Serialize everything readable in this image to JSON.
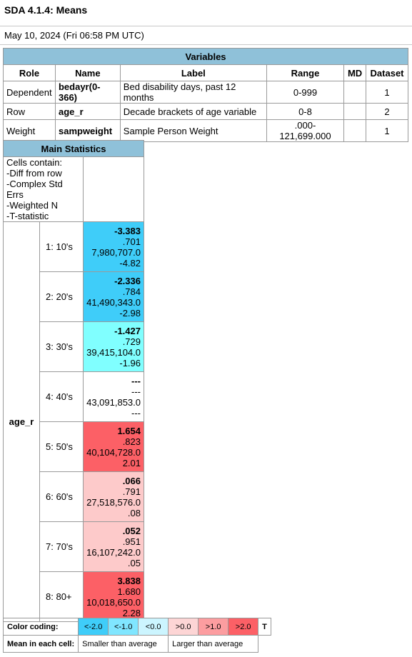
{
  "header": {
    "title": "SDA 4.1.4: Means",
    "date": "May 10, 2024 (Fri 06:58 PM UTC)"
  },
  "variables": {
    "caption": "Variables",
    "columns": [
      "Role",
      "Name",
      "Label",
      "Range",
      "MD",
      "Dataset"
    ],
    "rows": [
      {
        "role": "Dependent",
        "name": "bedayr(0-366)",
        "label": "Bed disability days, past 12 months",
        "range": "0-999",
        "md": "",
        "dataset": "1"
      },
      {
        "role": "Row",
        "name": "age_r",
        "label": "Decade brackets of age variable",
        "range": "0-8",
        "md": "",
        "dataset": "2"
      },
      {
        "role": "Weight",
        "name": "sampweight",
        "label": "Sample Person Weight",
        "range": ".000-121,699.000",
        "md": "",
        "dataset": "1"
      }
    ]
  },
  "main": {
    "caption": "Main Statistics",
    "cells_contain": [
      "Cells contain:",
      "-Diff from row",
      "-Complex Std Errs",
      "-Weighted N",
      "-T-statistic"
    ],
    "row_var": "age_r",
    "rows": [
      {
        "label": "1: 10's",
        "mean": "-3.383",
        "se": ".701",
        "n": "7,980,707.0",
        "t": "-4.82",
        "color": "#3fcdf9"
      },
      {
        "label": "2: 20's",
        "mean": "-2.336",
        "se": ".784",
        "n": "41,490,343.0",
        "t": "-2.98",
        "color": "#3fcdf9"
      },
      {
        "label": "3: 30's",
        "mean": "-1.427",
        "se": ".729",
        "n": "39,415,104.0",
        "t": "-1.96",
        "color": "#80ffff"
      },
      {
        "label": "4: 40's",
        "mean": "---",
        "se": "---",
        "n": "43,091,853.0",
        "t": "---",
        "color": "#ffffff"
      },
      {
        "label": "5: 50's",
        "mean": "1.654",
        "se": ".823",
        "n": "40,104,728.0",
        "t": "2.01",
        "color": "#fc6066"
      },
      {
        "label": "6: 60's",
        "mean": ".066",
        "se": ".791",
        "n": "27,518,576.0",
        "t": ".08",
        "color": "#fdcaca"
      },
      {
        "label": "7: 70's",
        "mean": ".052",
        "se": ".951",
        "n": "16,107,242.0",
        "t": ".05",
        "color": "#fdcaca"
      },
      {
        "label": "8: 80+",
        "mean": "3.838",
        "se": "1.680",
        "n": "10,018,650.0",
        "t": "2.28",
        "color": "#fc6066"
      }
    ]
  },
  "legend": {
    "color_label": "Color coding:",
    "swatches": [
      {
        "text": "<-2.0",
        "color": "#3fcdf9"
      },
      {
        "text": "<-1.0",
        "color": "#80e6ff"
      },
      {
        "text": "<0.0",
        "color": "#ccf5ff"
      },
      {
        "text": ">0.0",
        "color": "#fdd5d5"
      },
      {
        "text": ">1.0",
        "color": "#fc9da0"
      },
      {
        "text": ">2.0",
        "color": "#fc6066"
      }
    ],
    "t_label": "T",
    "mean_label": "Mean in each cell:",
    "smaller": "Smaller than average",
    "larger": "Larger than average"
  }
}
